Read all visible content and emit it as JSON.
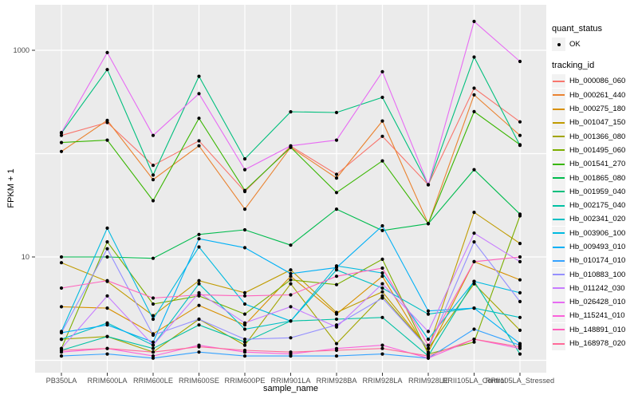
{
  "chart_data": {
    "type": "line",
    "title": "",
    "xlabel": "sample_name",
    "ylabel": "FPKM + 1",
    "y_scale": "log10",
    "grid": "on",
    "legend_position": "right",
    "panel_bg": "#EBEBEB",
    "grid_color": "#FFFFFF",
    "point_color": "#000000",
    "tick_label_color": "#4D4D4D",
    "ylim": [
      0.8,
      2800
    ],
    "y_gridline_values": [
      1,
      10,
      100,
      1000
    ],
    "y_tick_labels": [
      {
        "label": "1000",
        "value": 1000
      },
      {
        "label": "10",
        "value": 10
      }
    ],
    "categories": [
      "PB350LA",
      "RRIM600LA",
      "RRIM600LE",
      "RRIM600SE",
      "RRIM600PE",
      "RRIM901LA",
      "RRIM928BA",
      "RRIM928LA",
      "RRIM928LE",
      "RRII105LA_Control",
      "RRII105LA_Stressed"
    ],
    "series": [
      {
        "name": "Hb_000086_060",
        "color": "#F8766D",
        "values": [
          150,
          200,
          77,
          133,
          43,
          118,
          63,
          147,
          50,
          430,
          203
        ]
      },
      {
        "name": "Hb_000261_440",
        "color": "#EA8331",
        "values": [
          105,
          210,
          56,
          119,
          29,
          115,
          58,
          207,
          21,
          370,
          150
        ]
      },
      {
        "name": "Hb_000275_180",
        "color": "#D89000",
        "values": [
          3.3,
          3.2,
          1.8,
          3.4,
          2.2,
          6.5,
          2.8,
          6.5,
          1.2,
          9.0,
          6.0
        ]
      },
      {
        "name": "Hb_001047_150",
        "color": "#C09B00",
        "values": [
          8.8,
          5.8,
          2.7,
          5.9,
          4.5,
          7.5,
          2.9,
          4.6,
          1.3,
          27,
          13.5
        ]
      },
      {
        "name": "Hb_001366_080",
        "color": "#A3A500",
        "values": [
          1.6,
          1.7,
          1.2,
          2.5,
          1.4,
          5.5,
          1.45,
          4.2,
          1.3,
          5.5,
          1.95
        ]
      },
      {
        "name": "Hb_001495_060",
        "color": "#7CAE00",
        "values": [
          1.3,
          14,
          3.5,
          4.2,
          2.8,
          6.0,
          5.4,
          9.5,
          1.15,
          1.5,
          25
        ]
      },
      {
        "name": "Hb_001541_270",
        "color": "#39B600",
        "values": [
          128,
          135,
          35,
          220,
          44,
          115,
          42,
          85,
          21,
          255,
          122
        ]
      },
      {
        "name": "Hb_001865_080",
        "color": "#00BB4E",
        "values": [
          10,
          10,
          9.7,
          16.5,
          18.3,
          13,
          29,
          18,
          21,
          70,
          26
        ]
      },
      {
        "name": "Hb_001959_040",
        "color": "#00BF7D",
        "values": [
          158,
          650,
          62,
          560,
          89,
          254,
          250,
          350,
          50,
          860,
          120
        ]
      },
      {
        "name": "Hb_002175_040",
        "color": "#00C1A3",
        "values": [
          1.25,
          1.7,
          1.3,
          2.2,
          1.5,
          2.4,
          2.5,
          2.6,
          1.1,
          5.8,
          1.15
        ]
      },
      {
        "name": "Hb_002341_020",
        "color": "#00BFC4",
        "values": [
          1.6,
          2.3,
          1.4,
          5.5,
          2.0,
          2.4,
          7.5,
          5.0,
          2.8,
          3.2,
          2.6
        ]
      },
      {
        "name": "Hb_003906_100",
        "color": "#00BAE0",
        "values": [
          1.9,
          19,
          2.5,
          12.5,
          3.5,
          2.4,
          8.2,
          7.0,
          1.6,
          5.8,
          4.5
        ]
      },
      {
        "name": "Hb_009493_010",
        "color": "#00B0F6",
        "values": [
          1.85,
          2.2,
          1.5,
          15,
          12.3,
          6.9,
          7.9,
          20,
          3.0,
          3.2,
          1.45
        ]
      },
      {
        "name": "Hb_010174_010",
        "color": "#35A2FF",
        "values": [
          1.1,
          1.15,
          1.05,
          1.2,
          1.1,
          1.1,
          1.1,
          1.15,
          1.05,
          2.0,
          1.4
        ]
      },
      {
        "name": "Hb_010883_100",
        "color": "#9590FF",
        "values": [
          1.85,
          12,
          1.75,
          2.5,
          1.6,
          1.65,
          2.2,
          4.0,
          1.3,
          14,
          3.7
        ]
      },
      {
        "name": "Hb_011242_030",
        "color": "#C77CFF",
        "values": [
          1.3,
          4.2,
          1.4,
          4.5,
          2.3,
          3.3,
          2.1,
          5.5,
          1.9,
          17,
          9.0
        ]
      },
      {
        "name": "Hb_026428_010",
        "color": "#E76BF3",
        "values": [
          160,
          950,
          150,
          380,
          70,
          119,
          135,
          620,
          50,
          1900,
          780
        ]
      },
      {
        "name": "Hb_115241_010",
        "color": "#FA62DB",
        "values": [
          1.2,
          1.3,
          1.1,
          1.4,
          1.2,
          1.15,
          1.3,
          1.4,
          1.05,
          1.6,
          1.3
        ]
      },
      {
        "name": "Hb_148891_010",
        "color": "#FF62BC",
        "values": [
          5.0,
          5.9,
          4.0,
          4.3,
          4.2,
          4.3,
          6.5,
          7.8,
          1.4,
          9.0,
          10
        ]
      },
      {
        "name": "Hb_168978_020",
        "color": "#FF6A98",
        "values": [
          1.25,
          1.3,
          1.2,
          1.35,
          1.25,
          1.2,
          1.25,
          1.3,
          1.1,
          1.6,
          1.35
        ]
      }
    ]
  },
  "legend": {
    "quant_status_title": "quant_status",
    "quant_status_items": [
      {
        "label": "OK",
        "symbol": "point"
      }
    ],
    "tracking_id_title": "tracking_id"
  }
}
